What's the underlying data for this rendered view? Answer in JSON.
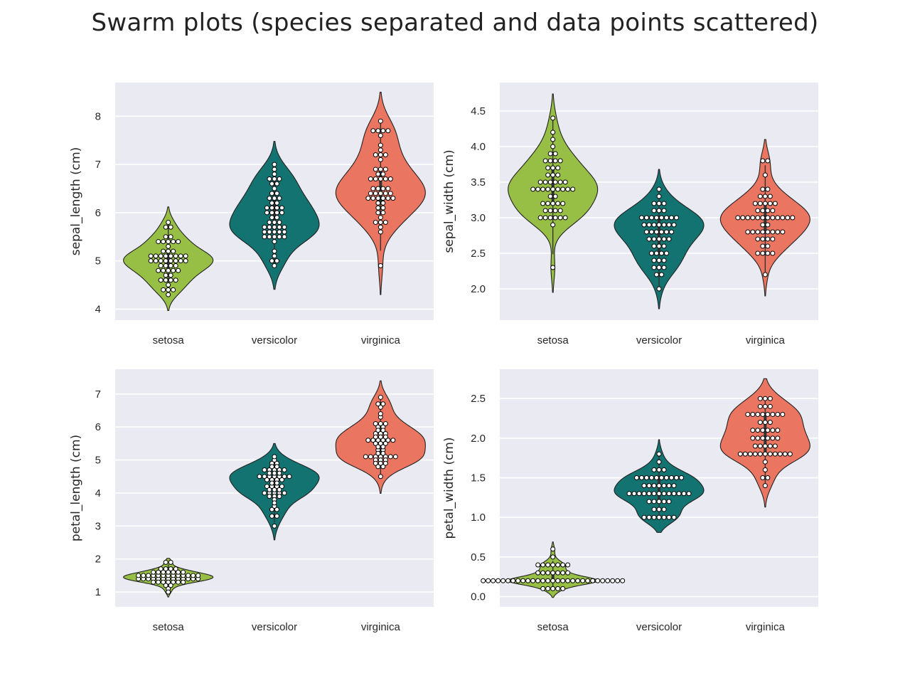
{
  "title": "Swarm plots (species separated and data points scattered)",
  "colors": {
    "background": "#eaeaf2",
    "grid": "#ffffff",
    "setosa": "#98bf45",
    "versicolor": "#137371",
    "virginica": "#ea7560",
    "outline": "#222222",
    "point_fill": "#ffffff",
    "point_edge": "#000000"
  },
  "chart_data": [
    {
      "type": "violin+swarm",
      "ylabel": "sepal_length (cm)",
      "categories": [
        "setosa",
        "versicolor",
        "virginica"
      ],
      "ylim": [
        3.77,
        8.7
      ],
      "yticks": [
        "4",
        "5",
        "6",
        "7",
        "8"
      ],
      "violin_range": [
        [
          3.97,
          6.12
        ],
        [
          4.41,
          7.48
        ],
        [
          4.3,
          8.5
        ]
      ],
      "values": {
        "setosa": [
          5.1,
          4.9,
          4.7,
          4.6,
          5.0,
          5.4,
          4.6,
          5.0,
          4.4,
          4.9,
          5.4,
          4.8,
          4.8,
          4.3,
          5.8,
          5.7,
          5.4,
          5.1,
          5.7,
          5.1,
          5.4,
          5.1,
          4.6,
          5.1,
          4.8,
          5.0,
          5.0,
          5.2,
          5.2,
          4.7,
          4.8,
          5.4,
          5.2,
          5.5,
          4.9,
          5.0,
          5.5,
          4.9,
          4.4,
          5.1,
          5.0,
          4.5,
          4.4,
          5.0,
          5.1,
          4.8,
          5.1,
          4.6,
          5.3,
          5.0
        ],
        "versicolor": [
          7.0,
          6.4,
          6.9,
          5.5,
          6.5,
          5.7,
          6.3,
          4.9,
          6.6,
          5.2,
          5.0,
          5.9,
          6.0,
          6.1,
          5.6,
          6.7,
          5.6,
          5.8,
          6.2,
          5.6,
          5.9,
          6.1,
          6.3,
          6.1,
          6.4,
          6.6,
          6.8,
          6.7,
          6.0,
          5.7,
          5.5,
          5.5,
          5.8,
          6.0,
          5.4,
          6.0,
          6.7,
          6.3,
          5.6,
          5.5,
          5.5,
          6.1,
          5.8,
          5.0,
          5.6,
          5.7,
          5.7,
          6.2,
          5.1,
          5.7
        ],
        "virginica": [
          6.3,
          5.8,
          7.1,
          6.3,
          6.5,
          7.6,
          4.9,
          7.3,
          6.7,
          7.2,
          6.5,
          6.4,
          6.8,
          5.7,
          5.8,
          6.4,
          6.5,
          7.7,
          7.7,
          6.0,
          6.9,
          5.6,
          7.7,
          6.3,
          6.7,
          7.2,
          6.2,
          6.1,
          6.4,
          7.2,
          7.4,
          7.9,
          6.4,
          6.3,
          6.1,
          7.7,
          6.3,
          6.4,
          6.0,
          6.9,
          6.7,
          6.9,
          5.8,
          6.8,
          6.7,
          6.7,
          6.3,
          6.5,
          6.2,
          5.9
        ]
      }
    },
    {
      "type": "violin+swarm",
      "ylabel": "sepal_width (cm)",
      "categories": [
        "setosa",
        "versicolor",
        "virginica"
      ],
      "ylim": [
        1.56,
        4.9
      ],
      "yticks": [
        "2.0",
        "2.5",
        "3.0",
        "3.5",
        "4.0",
        "4.5"
      ],
      "violin_range": [
        [
          1.95,
          4.74
        ],
        [
          1.72,
          3.68
        ],
        [
          1.9,
          4.1
        ]
      ],
      "values": {
        "setosa": [
          3.5,
          3.0,
          3.2,
          3.1,
          3.6,
          3.9,
          3.4,
          3.4,
          2.9,
          3.1,
          3.7,
          3.4,
          3.0,
          3.0,
          4.0,
          4.4,
          3.9,
          3.5,
          3.8,
          3.8,
          3.4,
          3.7,
          3.6,
          3.3,
          3.4,
          3.0,
          3.4,
          3.5,
          3.4,
          3.2,
          3.1,
          3.4,
          4.1,
          4.2,
          3.1,
          3.2,
          3.5,
          3.6,
          3.0,
          3.4,
          3.5,
          2.3,
          3.2,
          3.5,
          3.8,
          3.0,
          3.8,
          3.2,
          3.7,
          3.3
        ],
        "versicolor": [
          3.2,
          3.2,
          3.1,
          2.3,
          2.8,
          2.8,
          3.3,
          2.4,
          2.9,
          2.7,
          2.0,
          3.0,
          2.2,
          2.9,
          2.9,
          3.1,
          3.0,
          2.7,
          2.2,
          2.5,
          3.2,
          2.8,
          2.5,
          2.8,
          2.9,
          3.0,
          2.8,
          3.0,
          2.9,
          2.6,
          2.4,
          2.4,
          2.7,
          2.7,
          3.0,
          3.4,
          3.1,
          2.3,
          3.0,
          2.5,
          2.6,
          3.0,
          2.6,
          2.3,
          2.7,
          3.0,
          2.9,
          2.9,
          2.5,
          2.8
        ],
        "virginica": [
          3.3,
          2.7,
          3.0,
          2.9,
          3.0,
          3.0,
          2.5,
          2.9,
          2.5,
          3.6,
          3.2,
          2.7,
          3.0,
          2.5,
          2.8,
          3.2,
          3.0,
          3.8,
          2.6,
          2.2,
          3.2,
          2.8,
          2.8,
          2.7,
          3.3,
          3.2,
          2.8,
          3.0,
          2.8,
          3.0,
          2.8,
          3.8,
          2.8,
          2.8,
          2.6,
          3.0,
          3.4,
          3.1,
          3.0,
          3.1,
          3.1,
          3.1,
          2.7,
          3.2,
          3.3,
          3.0,
          2.5,
          3.0,
          3.4,
          3.0
        ]
      }
    },
    {
      "type": "violin+swarm",
      "ylabel": "petal_length (cm)",
      "categories": [
        "setosa",
        "versicolor",
        "virginica"
      ],
      "ylim": [
        0.55,
        7.75
      ],
      "yticks": [
        "1",
        "2",
        "3",
        "4",
        "5",
        "6",
        "7"
      ],
      "violin_range": [
        [
          0.85,
          2.02
        ],
        [
          2.58,
          5.5
        ],
        [
          3.99,
          7.4
        ]
      ],
      "values": {
        "setosa": [
          1.4,
          1.4,
          1.3,
          1.5,
          1.4,
          1.7,
          1.4,
          1.5,
          1.4,
          1.5,
          1.5,
          1.6,
          1.4,
          1.1,
          1.2,
          1.5,
          1.3,
          1.4,
          1.7,
          1.5,
          1.7,
          1.5,
          1.0,
          1.7,
          1.9,
          1.6,
          1.6,
          1.5,
          1.4,
          1.6,
          1.6,
          1.5,
          1.5,
          1.4,
          1.5,
          1.2,
          1.3,
          1.4,
          1.3,
          1.5,
          1.3,
          1.3,
          1.3,
          1.6,
          1.9,
          1.4,
          1.6,
          1.4,
          1.5,
          1.4
        ],
        "versicolor": [
          4.7,
          4.5,
          4.9,
          4.0,
          4.6,
          4.5,
          4.7,
          3.3,
          4.6,
          3.9,
          3.5,
          4.2,
          4.0,
          4.7,
          3.6,
          4.4,
          4.5,
          4.1,
          4.5,
          3.9,
          4.8,
          4.0,
          4.9,
          4.7,
          4.3,
          4.4,
          4.8,
          5.0,
          4.5,
          3.5,
          3.8,
          3.7,
          3.9,
          5.1,
          4.5,
          4.5,
          4.7,
          4.4,
          4.1,
          4.0,
          4.4,
          4.6,
          4.0,
          3.3,
          4.2,
          4.2,
          4.2,
          4.3,
          3.0,
          4.1
        ],
        "virginica": [
          6.0,
          5.1,
          5.9,
          5.6,
          5.8,
          6.6,
          4.5,
          6.3,
          5.8,
          6.1,
          5.1,
          5.3,
          5.5,
          5.0,
          5.1,
          5.3,
          5.5,
          6.7,
          6.9,
          5.0,
          5.7,
          4.9,
          6.7,
          4.9,
          5.7,
          6.0,
          4.8,
          4.9,
          5.6,
          5.8,
          6.1,
          6.4,
          5.6,
          5.1,
          5.6,
          6.1,
          5.6,
          5.5,
          4.8,
          5.4,
          5.6,
          5.1,
          5.1,
          5.9,
          5.7,
          5.2,
          5.0,
          5.2,
          5.4,
          5.1
        ]
      }
    },
    {
      "type": "violin+swarm",
      "ylabel": "petal_width (cm)",
      "categories": [
        "setosa",
        "versicolor",
        "virginica"
      ],
      "ylim": [
        -0.13,
        2.87
      ],
      "yticks": [
        "0.0",
        "0.5",
        "1.0",
        "1.5",
        "2.0",
        "2.5"
      ],
      "violin_range": [
        [
          -0.01,
          0.69
        ],
        [
          0.81,
          1.98
        ],
        [
          1.13,
          2.75
        ]
      ],
      "values": {
        "setosa": [
          0.2,
          0.2,
          0.2,
          0.2,
          0.2,
          0.4,
          0.3,
          0.2,
          0.2,
          0.1,
          0.2,
          0.2,
          0.1,
          0.1,
          0.2,
          0.4,
          0.4,
          0.3,
          0.3,
          0.3,
          0.2,
          0.4,
          0.2,
          0.5,
          0.2,
          0.2,
          0.4,
          0.2,
          0.2,
          0.2,
          0.2,
          0.4,
          0.1,
          0.2,
          0.2,
          0.2,
          0.2,
          0.1,
          0.2,
          0.2,
          0.3,
          0.3,
          0.2,
          0.6,
          0.4,
          0.3,
          0.2,
          0.2,
          0.2,
          0.2
        ],
        "versicolor": [
          1.4,
          1.5,
          1.5,
          1.3,
          1.5,
          1.3,
          1.6,
          1.0,
          1.3,
          1.4,
          1.0,
          1.5,
          1.0,
          1.4,
          1.3,
          1.4,
          1.5,
          1.0,
          1.5,
          1.1,
          1.8,
          1.3,
          1.5,
          1.2,
          1.3,
          1.4,
          1.4,
          1.7,
          1.5,
          1.0,
          1.1,
          1.0,
          1.2,
          1.6,
          1.5,
          1.6,
          1.5,
          1.3,
          1.3,
          1.3,
          1.2,
          1.4,
          1.2,
          1.0,
          1.3,
          1.2,
          1.3,
          1.3,
          1.1,
          1.3
        ],
        "virginica": [
          2.5,
          1.9,
          2.1,
          1.8,
          2.2,
          2.1,
          1.7,
          1.8,
          1.8,
          2.5,
          2.0,
          1.9,
          2.1,
          2.0,
          2.4,
          2.3,
          1.8,
          2.2,
          2.3,
          1.5,
          2.3,
          2.0,
          2.0,
          1.8,
          2.1,
          1.8,
          1.8,
          1.8,
          2.1,
          1.6,
          1.9,
          2.0,
          2.2,
          1.5,
          1.4,
          2.3,
          2.4,
          1.8,
          1.8,
          2.1,
          2.4,
          2.3,
          1.9,
          2.3,
          2.5,
          2.3,
          1.9,
          2.0,
          2.3,
          1.8
        ]
      }
    }
  ]
}
